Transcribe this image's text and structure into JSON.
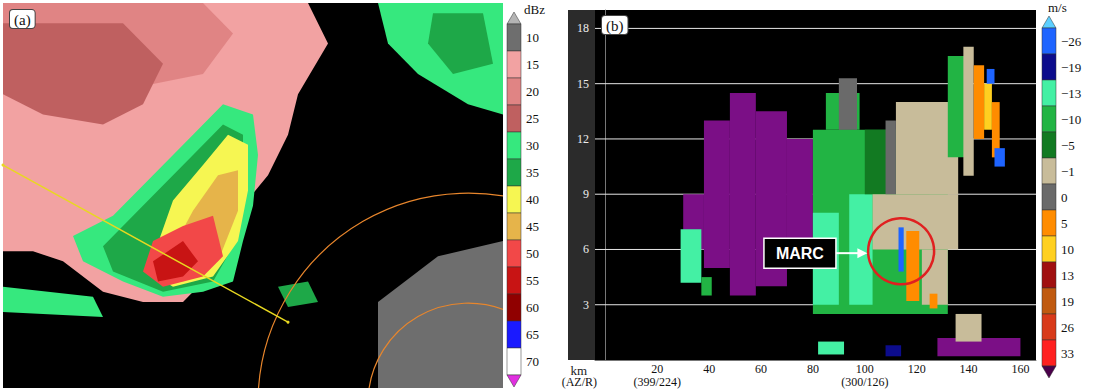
{
  "chart_data": [
    {
      "type": "ppi",
      "label": "(a)",
      "xlim": [
        0,
        100
      ],
      "ylim": [
        0,
        76
      ],
      "tick_labels": false,
      "colorbar": {
        "title": "dBz",
        "levels": [
          10,
          15,
          20,
          25,
          30,
          35,
          40,
          45,
          50,
          55,
          60,
          65,
          70
        ],
        "colors": [
          "#6e6e6e",
          "#f2a2a2",
          "#e08484",
          "#bf6060",
          "#36e87e",
          "#1ea848",
          "#f6f652",
          "#e6b44a",
          "#f24848",
          "#c81414",
          "#900000",
          "#1a1aff",
          "#ffffff"
        ],
        "under_color": "#b4b4b4",
        "over_color": "#e030e0"
      },
      "regions": [
        {
          "value": 15,
          "polygon": [
            [
              0,
              76
            ],
            [
              61,
              76
            ],
            [
              65,
              68
            ],
            [
              59,
              58
            ],
            [
              57,
              50
            ],
            [
              53,
              42
            ],
            [
              48,
              36
            ],
            [
              44,
              25
            ],
            [
              36,
              17
            ],
            [
              28,
              17
            ],
            [
              20,
              19
            ],
            [
              12,
              25
            ],
            [
              6,
              27
            ],
            [
              0,
              27
            ]
          ]
        },
        {
          "value": 20,
          "polygon": [
            [
              0,
              76
            ],
            [
              40,
              76
            ],
            [
              46,
              70
            ],
            [
              40,
              62
            ],
            [
              30,
              60
            ],
            [
              18,
              58
            ],
            [
              6,
              60
            ],
            [
              0,
              62
            ]
          ]
        },
        {
          "value": 25,
          "polygon": [
            [
              0,
              72
            ],
            [
              24,
              72
            ],
            [
              32,
              64
            ],
            [
              28,
              56
            ],
            [
              20,
              52
            ],
            [
              8,
              54
            ],
            [
              0,
              58
            ]
          ]
        },
        {
          "value": 30,
          "polygon": [
            [
              75,
              76
            ],
            [
              100,
              76
            ],
            [
              100,
              54
            ],
            [
              93,
              56
            ],
            [
              83,
              62
            ],
            [
              77,
              68
            ]
          ]
        },
        {
          "value": 35,
          "polygon": [
            [
              86,
              74
            ],
            [
              96,
              74
            ],
            [
              98,
              64
            ],
            [
              90,
              62
            ],
            [
              85,
              68
            ]
          ]
        },
        {
          "value": 30,
          "polygon": [
            [
              14,
              30
            ],
            [
              22,
              34
            ],
            [
              30,
              42
            ],
            [
              38,
              50
            ],
            [
              44,
              56
            ],
            [
              50,
              54
            ],
            [
              51,
              46
            ],
            [
              50,
              36
            ],
            [
              48,
              29
            ],
            [
              46,
              21
            ],
            [
              40,
              19
            ],
            [
              32,
              18
            ],
            [
              24,
              21
            ],
            [
              16,
              25
            ]
          ]
        },
        {
          "value": 35,
          "polygon": [
            [
              20,
              28
            ],
            [
              30,
              38
            ],
            [
              38,
              46
            ],
            [
              44,
              52
            ],
            [
              48,
              50
            ],
            [
              48,
              38
            ],
            [
              46,
              28
            ],
            [
              42,
              21
            ],
            [
              32,
              19
            ],
            [
              22,
              23
            ]
          ]
        },
        {
          "value": 40,
          "polygon": [
            [
              34,
              37
            ],
            [
              40,
              44
            ],
            [
              45,
              50
            ],
            [
              49,
              48
            ],
            [
              49,
              39
            ],
            [
              47,
              29
            ],
            [
              42,
              22
            ],
            [
              34,
              20
            ],
            [
              29,
              23
            ]
          ]
        },
        {
          "value": 45,
          "polygon": [
            [
              38,
              35
            ],
            [
              43,
              42
            ],
            [
              47,
              43
            ],
            [
              47,
              35
            ],
            [
              43,
              25
            ],
            [
              36,
              21
            ],
            [
              32,
              24
            ]
          ]
        },
        {
          "value": 50,
          "polygon": [
            [
              30,
              29
            ],
            [
              36,
              32
            ],
            [
              42,
              34
            ],
            [
              44,
              26
            ],
            [
              40,
              22
            ],
            [
              32,
              20
            ],
            [
              28,
              23
            ]
          ]
        },
        {
          "value": 55,
          "polygon": [
            [
              30,
              25
            ],
            [
              36,
              29
            ],
            [
              39,
              25
            ],
            [
              36,
              22
            ],
            [
              31,
              21
            ]
          ]
        },
        {
          "value": 10,
          "polygon": [
            [
              75,
              17
            ],
            [
              87,
              26
            ],
            [
              100,
              29
            ],
            [
              100,
              0
            ],
            [
              75,
              0
            ]
          ]
        },
        {
          "value": 35,
          "polygon": [
            [
              55,
              20
            ],
            [
              61,
              21
            ],
            [
              63,
              17
            ],
            [
              57,
              16
            ]
          ]
        },
        {
          "value": 30,
          "polygon": [
            [
              0,
              20
            ],
            [
              18,
              18
            ],
            [
              20,
              14
            ],
            [
              0,
              15
            ]
          ]
        }
      ],
      "section_line": [
        [
          0,
          44
        ],
        [
          57,
          13
        ]
      ],
      "range_rings": {
        "center": [
          93,
          -3
        ],
        "radii": [
          20,
          42
        ]
      }
    },
    {
      "type": "cross_section",
      "label": "(b)",
      "xlim": [
        -4,
        166
      ],
      "xticks": [
        20,
        40,
        60,
        80,
        100,
        120,
        140,
        160
      ],
      "ylim": [
        0,
        19
      ],
      "yticks": [
        3,
        6,
        9,
        12,
        15,
        18
      ],
      "x_label": "km",
      "grid": true,
      "colorbar": {
        "title": "m/s",
        "levels": [
          {
            "value": -26,
            "label": "−26"
          },
          {
            "value": -19,
            "label": "−19"
          },
          {
            "value": -13,
            "label": "−13"
          },
          {
            "value": -10,
            "label": "−10"
          },
          {
            "value": -5,
            "label": "−5"
          },
          {
            "value": -1,
            "label": "−1"
          },
          0,
          5,
          10,
          13,
          19,
          26,
          33
        ],
        "colors": [
          "#1e64ff",
          "#0c0c8c",
          "#44f0a4",
          "#22b444",
          "#127a22",
          "#c8bc9a",
          "#6a6a6a",
          "#ff8c00",
          "#ffd020",
          "#a01010",
          "#c05a10",
          "#d83a1a",
          "#ff2020"
        ],
        "under_color": "#5ccfff",
        "over_color": "#4a004a"
      },
      "range_folded": {
        "color": "#7b0f86",
        "boxes": [
          [
            38,
            48,
            5,
            13
          ],
          [
            48,
            58,
            3.5,
            14.5
          ],
          [
            58,
            70,
            4,
            13.5
          ],
          [
            70,
            80,
            5,
            12
          ],
          [
            80,
            86,
            7,
            10
          ],
          [
            30,
            38,
            6,
            9
          ],
          [
            128,
            160,
            0.2,
            1.2
          ]
        ]
      },
      "cells": [
        [
          80,
          132,
          2.5,
          12.5,
          -7
        ],
        [
          85,
          98,
          12.5,
          14.5,
          -7
        ],
        [
          80,
          90,
          3,
          8,
          -11
        ],
        [
          94,
          103,
          3,
          9,
          -11
        ],
        [
          29,
          37,
          4.2,
          7.1,
          -11
        ],
        [
          37,
          41,
          3.5,
          4.5,
          -7
        ],
        [
          100,
          125,
          9,
          12.5,
          -3
        ],
        [
          103,
          136,
          6,
          9,
          -0.5
        ],
        [
          112,
          136,
          9,
          14,
          -0.5
        ],
        [
          90,
          97,
          12.5,
          15.3,
          2
        ],
        [
          108,
          112,
          9,
          13,
          2
        ],
        [
          122,
          132,
          3,
          6,
          -0.5
        ],
        [
          116,
          121,
          3.2,
          7,
          7
        ],
        [
          113,
          115,
          4.8,
          7.2,
          -22
        ],
        [
          125,
          128,
          2.8,
          3.6,
          7
        ],
        [
          132,
          140,
          11,
          16.5,
          -7
        ],
        [
          138,
          142,
          10,
          17,
          -0.5
        ],
        [
          142,
          146,
          12,
          16,
          7
        ],
        [
          146,
          149,
          12.5,
          15,
          11
        ],
        [
          149,
          152,
          11,
          14,
          7
        ],
        [
          147,
          150,
          15,
          15.8,
          -22
        ],
        [
          150,
          154,
          10.5,
          11.5,
          -22
        ],
        [
          135,
          145,
          1,
          2.5,
          -0.5
        ],
        [
          108,
          114,
          0.2,
          0.8,
          -16
        ],
        [
          82,
          92,
          0.3,
          1,
          -11
        ]
      ],
      "annotations": [
        {
          "text": "MARC",
          "x": 75,
          "y": 5.8,
          "arrow_to": [
            101,
            5.8
          ]
        }
      ],
      "highlight": {
        "x": 114,
        "y": 5.9
      },
      "bottom_labels": [
        {
          "text": "(AZ/R)"
        },
        {
          "text": "(399/224)",
          "x": 20
        },
        {
          "text": "(300/126)",
          "x": 100
        }
      ]
    }
  ]
}
